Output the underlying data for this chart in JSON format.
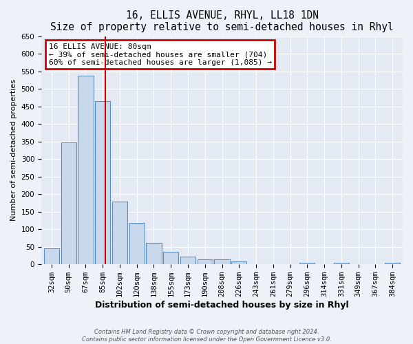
{
  "title": "16, ELLIS AVENUE, RHYL, LL18 1DN",
  "subtitle": "Size of property relative to semi-detached houses in Rhyl",
  "xlabel": "Distribution of semi-detached houses by size in Rhyl",
  "ylabel": "Number of semi-detached properties",
  "bar_labels": [
    "32sqm",
    "50sqm",
    "67sqm",
    "85sqm",
    "102sqm",
    "120sqm",
    "138sqm",
    "155sqm",
    "173sqm",
    "190sqm",
    "208sqm",
    "226sqm",
    "243sqm",
    "261sqm",
    "279sqm",
    "296sqm",
    "314sqm",
    "331sqm",
    "349sqm",
    "367sqm",
    "384sqm"
  ],
  "bar_values": [
    46,
    348,
    537,
    465,
    178,
    118,
    62,
    35,
    22,
    15,
    15,
    8,
    0,
    0,
    0,
    5,
    0,
    5,
    0,
    0,
    5
  ],
  "bar_color": "#c9d9ed",
  "bar_edge_color": "#5b8fbe",
  "vline_x": 3.15,
  "annotation_title": "16 ELLIS AVENUE: 80sqm",
  "annotation_line1": "← 39% of semi-detached houses are smaller (704)",
  "annotation_line2": "60% of semi-detached houses are larger (1,085) →",
  "annotation_box_facecolor": "#ffffff",
  "annotation_box_edgecolor": "#cc0000",
  "vline_color": "#cc0000",
  "ylim": [
    0,
    650
  ],
  "yticks": [
    0,
    50,
    100,
    150,
    200,
    250,
    300,
    350,
    400,
    450,
    500,
    550,
    600,
    650
  ],
  "footer_line1": "Contains HM Land Registry data © Crown copyright and database right 2024.",
  "footer_line2": "Contains public sector information licensed under the Open Government Licence v3.0.",
  "bg_color": "#eef2f8",
  "plot_bg_color": "#e4eaf4",
  "grid_color": "#ffffff",
  "title_fontsize": 10.5,
  "subtitle_fontsize": 9,
  "xlabel_fontsize": 9,
  "ylabel_fontsize": 8,
  "tick_fontsize": 7.5,
  "annotation_fontsize": 8,
  "footer_fontsize": 6
}
